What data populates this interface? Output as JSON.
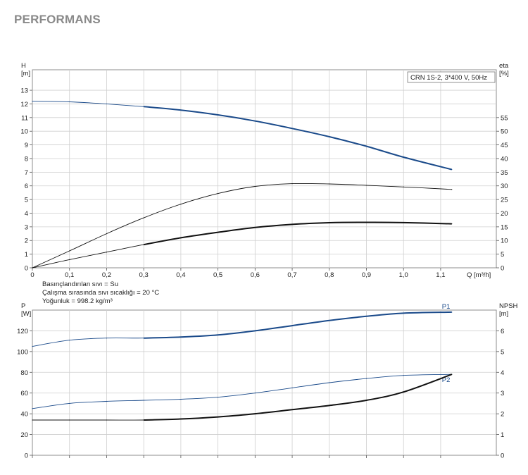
{
  "page": {
    "title": "PERFORMANS"
  },
  "chart_data": [
    {
      "type": "line",
      "model_label": "CRN 1S-2, 3*400 V, 50Hz",
      "xlabel": "Q [m³/h]",
      "xlim": [
        0,
        1.25
      ],
      "xticks": [
        0,
        0.1,
        0.2,
        0.3,
        0.4,
        0.5,
        0.6,
        0.7,
        0.8,
        0.9,
        1.0,
        1.1
      ],
      "xtick_labels": [
        "0",
        "0,1",
        "0,2",
        "0,3",
        "0,4",
        "0,5",
        "0,6",
        "0,7",
        "0,8",
        "0,9",
        "1,0",
        "1,1"
      ],
      "y_left": {
        "label": "H",
        "unit": "[m]",
        "lim": [
          0,
          14.5
        ],
        "ticks": [
          0,
          1,
          2,
          3,
          4,
          5,
          6,
          7,
          8,
          9,
          10,
          11,
          12,
          13
        ]
      },
      "y_right": {
        "label": "eta",
        "unit": "[%]",
        "lim": [
          0,
          72.5
        ],
        "ticks": [
          0,
          5,
          10,
          15,
          20,
          25,
          30,
          35,
          40,
          45,
          50,
          55
        ]
      },
      "grid": true,
      "notes": [
        "Basınçlandırılan sıvı = Su",
        "Çalışma sırasında sıvı sıcaklığı = 20 °C",
        "Yoğunluk = 998.2 kg/m³"
      ],
      "series": [
        {
          "axis": "left",
          "color": "#1a4a8a",
          "x": [
            0,
            0.1,
            0.2,
            0.3,
            0.4,
            0.5,
            0.6,
            0.7,
            0.8,
            0.9,
            1.0,
            1.13
          ],
          "y": [
            12.2,
            12.15,
            12.0,
            11.8,
            11.55,
            11.2,
            10.75,
            10.2,
            9.6,
            8.9,
            8.1,
            7.2
          ],
          "bold_from": 0.3
        },
        {
          "axis": "right",
          "color": "#111111",
          "x": [
            0,
            0.1,
            0.2,
            0.3,
            0.4,
            0.5,
            0.6,
            0.7,
            0.8,
            0.9,
            1.0,
            1.13
          ],
          "y": [
            0,
            6.2,
            12.5,
            18.3,
            23.3,
            27.2,
            29.8,
            30.8,
            30.7,
            30.2,
            29.6,
            28.7
          ],
          "bold_from": 99
        },
        {
          "axis": "left",
          "color": "#111111",
          "x": [
            0,
            0.1,
            0.2,
            0.3,
            0.4,
            0.5,
            0.6,
            0.7,
            0.8,
            0.9,
            1.0,
            1.13
          ],
          "y": [
            0,
            0.6,
            1.15,
            1.7,
            2.2,
            2.6,
            2.95,
            3.18,
            3.3,
            3.33,
            3.31,
            3.22
          ],
          "bold_from": 0.3
        }
      ]
    },
    {
      "type": "line",
      "xlim": [
        0,
        1.25
      ],
      "y_left": {
        "label": "P",
        "unit": "[W]",
        "lim": [
          0,
          140
        ],
        "ticks": [
          0,
          20,
          40,
          60,
          80,
          100,
          120
        ]
      },
      "y_right": {
        "label": "NPSH",
        "unit": "[m]",
        "lim": [
          0,
          7
        ],
        "ticks": [
          0,
          1,
          2,
          3,
          4,
          5,
          6
        ]
      },
      "grid": true,
      "series": [
        {
          "name": "P1",
          "axis": "left",
          "color": "#1a4a8a",
          "x": [
            0,
            0.1,
            0.2,
            0.3,
            0.4,
            0.5,
            0.6,
            0.7,
            0.8,
            0.9,
            1.0,
            1.13
          ],
          "y": [
            105,
            111,
            113,
            113,
            114,
            116,
            120,
            125,
            130,
            134,
            137,
            138
          ],
          "bold_from": 0.3
        },
        {
          "name": "P2",
          "axis": "left",
          "color": "#1a4a8a",
          "x": [
            0,
            0.1,
            0.2,
            0.3,
            0.4,
            0.5,
            0.6,
            0.7,
            0.8,
            0.9,
            1.0,
            1.13
          ],
          "y": [
            45,
            50,
            52,
            53,
            54,
            56,
            60,
            65,
            70,
            74,
            77,
            78
          ],
          "bold_from": 99
        },
        {
          "axis": "right",
          "color": "#111111",
          "x": [
            0,
            0.1,
            0.2,
            0.3,
            0.4,
            0.5,
            0.6,
            0.7,
            0.8,
            0.9,
            1.0,
            1.13
          ],
          "y": [
            1.7,
            1.7,
            1.7,
            1.7,
            1.75,
            1.85,
            2.0,
            2.2,
            2.4,
            2.65,
            3.05,
            3.9
          ],
          "bold_from": 0.3
        }
      ]
    }
  ]
}
